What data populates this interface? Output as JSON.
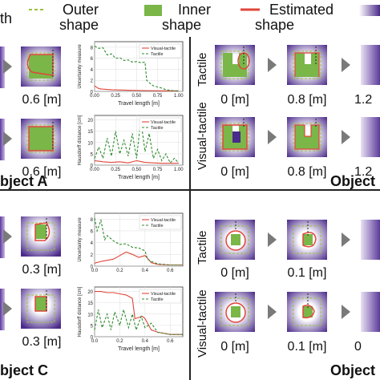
{
  "legend": {
    "partial_text": "th",
    "outer_line1": "Outer",
    "outer_line2": "shape",
    "inner_line1": "Inner",
    "inner_line2": "shape",
    "estimated_line1": "Estimated",
    "estimated_line2": "shape"
  },
  "colors": {
    "outer": "#9ac23c",
    "inner": "#7ab648",
    "estimated": "#e0463b",
    "purple": "#4a2a8a"
  },
  "panel_a": {
    "title": "bject A",
    "caption_top": "0.6 [m]",
    "caption_bottom": "0.6 [m]",
    "plot_top": {
      "ylabel": "Uncertainty measure",
      "xlabel": "Travel length [m]",
      "legend": [
        "Visual-tactile",
        "Tactile"
      ],
      "yticks": [
        "0",
        "2",
        "4",
        "6",
        "8"
      ],
      "xticks": [
        "0.00",
        "0.25",
        "0.50",
        "0.75",
        "1.00"
      ]
    },
    "plot_bottom": {
      "ylabel": "Hausdorff distance [cm]",
      "xlabel": "Travel length [m]",
      "legend": [
        "Visual-tactile",
        "Tactile"
      ],
      "yticks": [
        "0",
        "5",
        "10",
        "15",
        "20"
      ],
      "xticks": [
        "0.00",
        "0.25",
        "0.50",
        "0.75",
        "1.00"
      ]
    }
  },
  "panel_b": {
    "title": "Object I",
    "label_top": "Tactile",
    "label_bottom": "Visual-tactile",
    "captions_top": [
      "0 [m]",
      "0.8 [m]",
      "1.2"
    ],
    "captions_bottom": [
      "0 [m]",
      "0.8 [m]",
      "1.2"
    ]
  },
  "panel_c": {
    "title": "bject C",
    "caption_top": "0.3 [m]",
    "caption_bottom": "0.3 [m]",
    "plot_top": {
      "ylabel": "Uncertainty measure",
      "xlabel": "",
      "legend": [
        "Visual-tactile",
        "Tactile"
      ],
      "yticks": [
        "0",
        "2",
        "4",
        "6",
        "8"
      ],
      "xticks": [
        "0.0",
        "0.2",
        "0.4",
        "0.6"
      ]
    },
    "plot_bottom": {
      "ylabel": "Hausdorff distance [cm]",
      "xlabel": "Travel length [m]",
      "legend": [
        "Visual-tactile",
        "Tactile"
      ],
      "yticks": [
        "0",
        "5",
        "10",
        "15",
        "20"
      ],
      "xticks": [
        "0.0",
        "0.2",
        "0.4",
        "0.6"
      ]
    }
  },
  "panel_d": {
    "title": "Object I",
    "label_top": "Tactile",
    "label_bottom": "Visual-tactile",
    "captions_top": [
      "0 [m]",
      "0.1 [m]",
      ""
    ],
    "captions_bottom": [
      "0 [m]",
      "0.1 [m]",
      "0"
    ]
  },
  "chart_data": [
    {
      "type": "line",
      "xlabel": "Travel length [m]",
      "ylabel": "Uncertainty measure",
      "xlim": [
        0,
        1.05
      ],
      "ylim": [
        0,
        9
      ],
      "series": [
        {
          "name": "Visual-tactile",
          "x": [
            0,
            0.05,
            0.1,
            0.2,
            0.4,
            0.6,
            0.8,
            1.0
          ],
          "values": [
            1.0,
            0.5,
            0.4,
            0.3,
            0.2,
            0.15,
            0.1,
            0.1
          ]
        },
        {
          "name": "Tactile",
          "x": [
            0,
            0.05,
            0.1,
            0.15,
            0.2,
            0.25,
            0.3,
            0.35,
            0.4,
            0.45,
            0.5,
            0.55,
            0.6,
            0.62,
            0.65,
            0.7,
            0.75,
            0.8,
            0.85,
            0.9,
            0.95,
            1.0
          ],
          "values": [
            8.2,
            7.8,
            7.9,
            6.6,
            6.8,
            6.0,
            6.1,
            5.6,
            5.7,
            5.3,
            5.4,
            5.2,
            5.3,
            2.0,
            1.6,
            1.0,
            0.8,
            0.6,
            0.3,
            0.2,
            0.1,
            0.1
          ]
        }
      ]
    },
    {
      "type": "line",
      "xlabel": "Travel length [m]",
      "ylabel": "Hausdorff distance [cm]",
      "xlim": [
        0,
        1.05
      ],
      "ylim": [
        0,
        22
      ],
      "series": [
        {
          "name": "Visual-tactile",
          "x": [
            0,
            0.1,
            0.2,
            0.3,
            0.4,
            0.5,
            0.6,
            0.7,
            0.8,
            0.9,
            1.0
          ],
          "values": [
            2,
            1.5,
            1.2,
            1.5,
            1.0,
            2.0,
            1.2,
            1.0,
            0.8,
            0.8,
            0.8
          ]
        },
        {
          "name": "Tactile",
          "x": [
            0,
            0.05,
            0.1,
            0.15,
            0.2,
            0.25,
            0.3,
            0.35,
            0.4,
            0.45,
            0.5,
            0.55,
            0.6,
            0.65,
            0.7,
            0.75,
            0.8,
            0.85,
            0.9,
            0.95,
            1.0
          ],
          "values": [
            3,
            8,
            3,
            12,
            4,
            15,
            5,
            11,
            4,
            14,
            3,
            20,
            6,
            14,
            3,
            7,
            2,
            5,
            1,
            3,
            1
          ]
        }
      ]
    },
    {
      "type": "line",
      "xlabel": "",
      "ylabel": "Uncertainty measure",
      "xlim": [
        0,
        0.7
      ],
      "ylim": [
        0,
        9
      ],
      "series": [
        {
          "name": "Visual-tactile",
          "x": [
            0,
            0.05,
            0.1,
            0.15,
            0.2,
            0.25,
            0.3,
            0.35,
            0.4,
            0.45,
            0.5,
            0.6,
            0.7
          ],
          "values": [
            0.5,
            0.8,
            1.0,
            1.2,
            1.8,
            2.4,
            2.0,
            1.5,
            1.8,
            0.6,
            0.3,
            0.2,
            0.2
          ]
        },
        {
          "name": "Tactile",
          "x": [
            0,
            0.02,
            0.05,
            0.08,
            0.1,
            0.15,
            0.2,
            0.25,
            0.3,
            0.35,
            0.4,
            0.42,
            0.45,
            0.5,
            0.6,
            0.7
          ],
          "values": [
            8.2,
            6.0,
            7.8,
            4.5,
            5.2,
            4.3,
            3.7,
            3.8,
            3.2,
            3.1,
            2.6,
            1.2,
            0.8,
            0.4,
            0.2,
            0.2
          ]
        }
      ]
    },
    {
      "type": "line",
      "xlabel": "Travel length [m]",
      "ylabel": "Hausdorff distance [cm]",
      "xlim": [
        0,
        0.7
      ],
      "ylim": [
        0,
        22
      ],
      "series": [
        {
          "name": "Visual-tactile",
          "x": [
            0,
            0.05,
            0.1,
            0.15,
            0.2,
            0.25,
            0.3,
            0.32,
            0.35,
            0.38,
            0.4,
            0.45,
            0.5,
            0.6,
            0.7
          ],
          "values": [
            20,
            20,
            19.5,
            19.5,
            19,
            18.5,
            17,
            8,
            8.5,
            9,
            8,
            3,
            2,
            1,
            1
          ]
        },
        {
          "name": "Tactile",
          "x": [
            0,
            0.03,
            0.06,
            0.1,
            0.13,
            0.16,
            0.2,
            0.23,
            0.27,
            0.3,
            0.33,
            0.37,
            0.4,
            0.45,
            0.5,
            0.6,
            0.7
          ],
          "values": [
            3,
            12,
            4,
            10,
            3,
            11,
            5,
            12,
            4,
            10,
            3,
            9,
            4,
            6,
            2,
            1,
            1
          ]
        }
      ]
    }
  ]
}
